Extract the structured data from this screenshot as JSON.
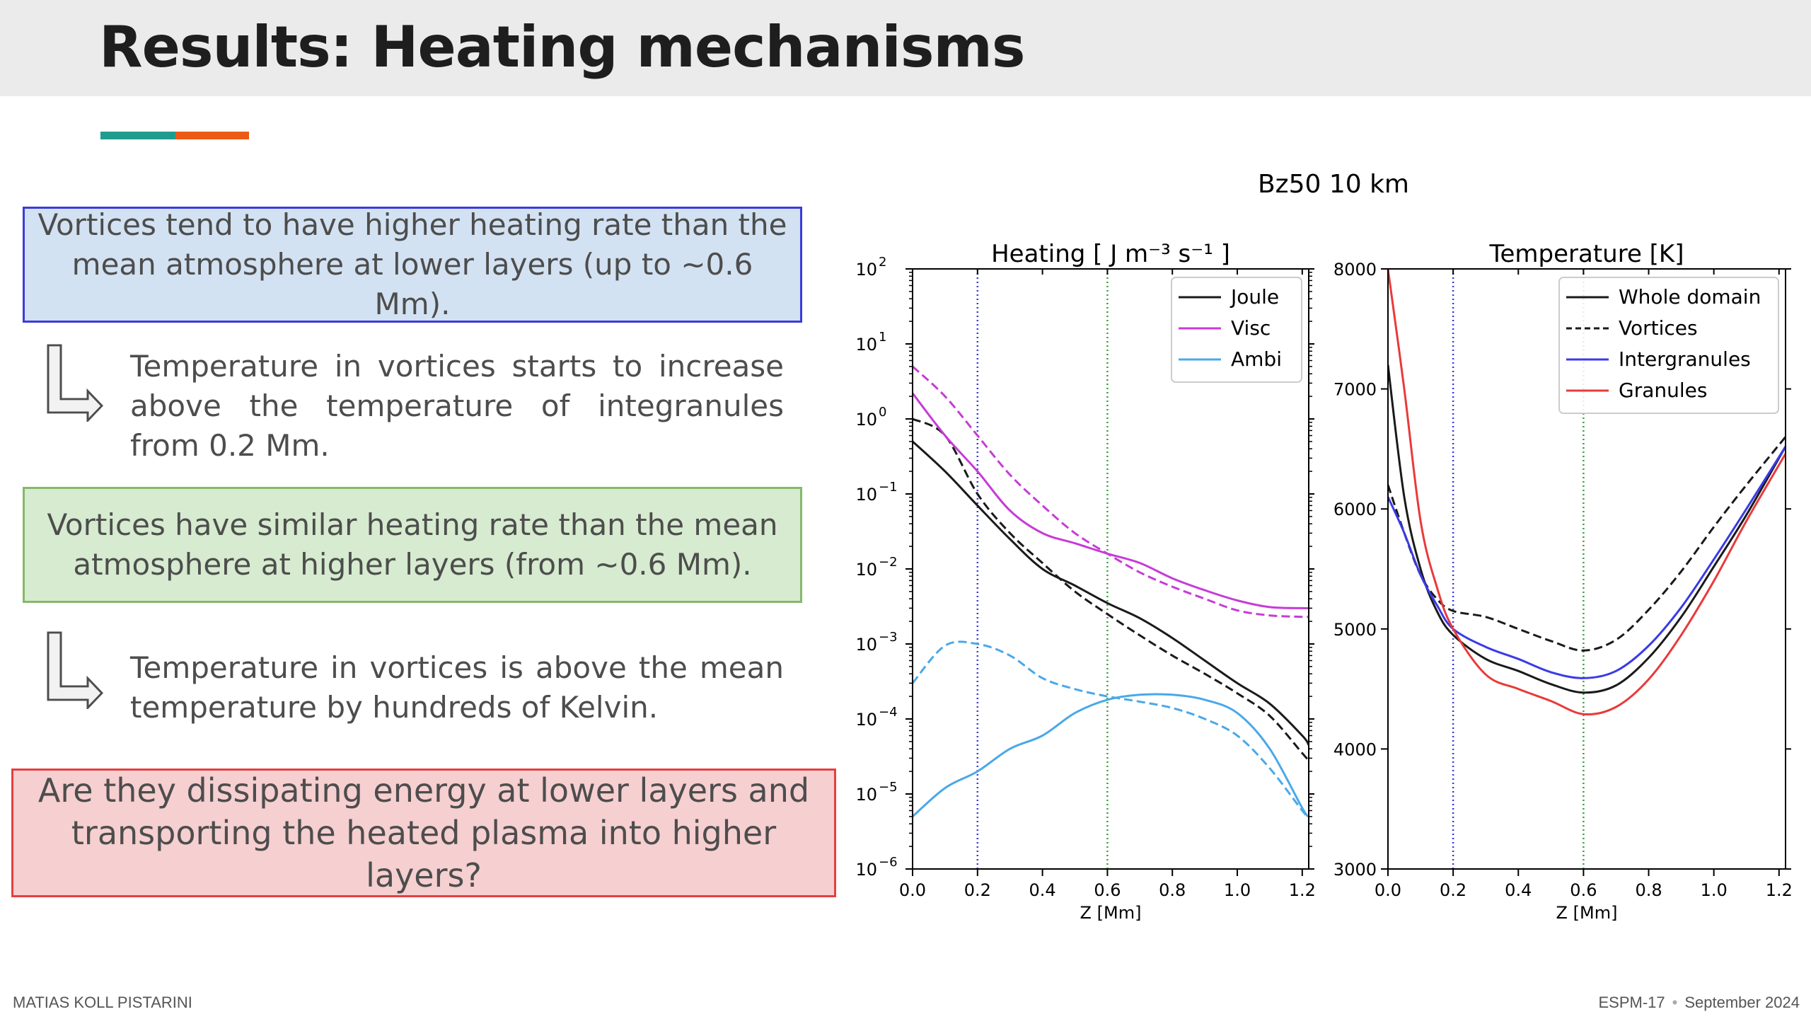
{
  "header": {
    "title": "Results: Heating mechanisms"
  },
  "boxes": {
    "blue": "Vortices tend to have higher heating rate than the mean atmosphere at lower layers (up to ~0.6 Mm).",
    "green": "Vortices have similar heating rate than the mean atmosphere at higher layers (from ~0.6 Mm).",
    "red": "Are they dissipating energy at lower layers and transporting the heated plasma into higher layers?"
  },
  "notes": {
    "note1": "Temperature in vortices starts to increase above the temperature of integranules from 0.2 Mm.",
    "note2": "Temperature in vortices is above the mean temperature by hundreds of Kelvin."
  },
  "footer": {
    "author": "MATIAS KOLL PISTARINI",
    "conference": "ESPM-17",
    "separator": "•",
    "date": "September  2024"
  },
  "colors": {
    "teal": "#1f9c8d",
    "orange": "#ec5a17"
  },
  "chart_data": [
    {
      "type": "line",
      "suptitle": "Bz50 10 km",
      "title": "Heating [ J m⁻³ s⁻¹ ]",
      "xlabel": "Z [Mm]",
      "ylabel": "",
      "xlim": [
        0.0,
        1.22
      ],
      "ylim": [
        1e-06,
        100
      ],
      "yscale": "log",
      "xticks": [
        0.0,
        0.2,
        0.4,
        0.6,
        0.8,
        1.0,
        1.2
      ],
      "xtick_labels": [
        "0.0",
        "0.2",
        "0.4",
        "0.6",
        "0.8",
        "1.0",
        "1.2"
      ],
      "ytick_exponents": [
        -6,
        -5,
        -4,
        -3,
        -2,
        -1,
        0,
        1,
        2
      ],
      "legend_position": "top-right",
      "vlines": [
        {
          "x": 0.2,
          "color": "#3a3ad8",
          "style": "dotted"
        },
        {
          "x": 0.6,
          "color": "#3aa03a",
          "style": "dotted"
        }
      ],
      "x": [
        0.0,
        0.1,
        0.2,
        0.3,
        0.4,
        0.5,
        0.6,
        0.7,
        0.8,
        0.9,
        1.0,
        1.1,
        1.2,
        1.22
      ],
      "series": [
        {
          "name": "Joule",
          "color": "#1a1a1a",
          "dash": "solid",
          "values": [
            0.5,
            0.2,
            0.07,
            0.025,
            0.01,
            0.006,
            0.0035,
            0.0022,
            0.0012,
            0.0006,
            0.0003,
            0.00016,
            6e-05,
            4.5e-05
          ]
        },
        {
          "name": "",
          "color": "#1a1a1a",
          "dash": "dashed",
          "values": [
            1.0,
            0.6,
            0.1,
            0.03,
            0.012,
            0.005,
            0.0025,
            0.0013,
            0.0007,
            0.0004,
            0.00022,
            0.00011,
            3.5e-05,
            2.8e-05
          ]
        },
        {
          "name": "Visc",
          "color": "#c63cd6",
          "dash": "solid",
          "values": [
            2.2,
            0.6,
            0.2,
            0.06,
            0.03,
            0.022,
            0.016,
            0.012,
            0.0075,
            0.0052,
            0.0038,
            0.0031,
            0.003,
            0.003
          ]
        },
        {
          "name": "",
          "color": "#c63cd6",
          "dash": "dashed",
          "values": [
            5.0,
            2.0,
            0.6,
            0.18,
            0.07,
            0.03,
            0.016,
            0.009,
            0.0058,
            0.004,
            0.0028,
            0.0024,
            0.0023,
            0.0023
          ]
        },
        {
          "name": "Ambi",
          "color": "#4aa8e8",
          "dash": "solid",
          "values": [
            5e-06,
            1.2e-05,
            2e-05,
            4e-05,
            6e-05,
            0.00012,
            0.00018,
            0.00021,
            0.00021,
            0.00018,
            0.00012,
            4e-05,
            6.5e-06,
            5e-06
          ]
        },
        {
          "name": "",
          "color": "#4aa8e8",
          "dash": "dashed",
          "values": [
            0.0003,
            0.00095,
            0.001,
            0.0007,
            0.00035,
            0.00025,
            0.0002,
            0.00017,
            0.00014,
            0.0001,
            6e-05,
            2.2e-05,
            6e-06,
            4.8e-06
          ]
        }
      ]
    },
    {
      "type": "line",
      "title": "Temperature [K]",
      "xlabel": "Z [Mm]",
      "ylabel": "",
      "xlim": [
        0.0,
        1.22
      ],
      "ylim": [
        3000,
        8000
      ],
      "xticks": [
        0.0,
        0.2,
        0.4,
        0.6,
        0.8,
        1.0,
        1.2
      ],
      "xtick_labels": [
        "0.0",
        "0.2",
        "0.4",
        "0.6",
        "0.8",
        "1.0",
        "1.2"
      ],
      "yticks": [
        3000,
        4000,
        5000,
        6000,
        7000,
        8000
      ],
      "ytick_labels": [
        "3000",
        "4000",
        "5000",
        "6000",
        "7000",
        "8000"
      ],
      "legend_position": "top-right",
      "vlines": [
        {
          "x": 0.2,
          "color": "#3a3ad8",
          "style": "dotted"
        },
        {
          "x": 0.6,
          "color": "#3aa03a",
          "style": "dotted"
        }
      ],
      "x": [
        0.0,
        0.05,
        0.1,
        0.15,
        0.2,
        0.3,
        0.4,
        0.5,
        0.6,
        0.7,
        0.8,
        0.9,
        1.0,
        1.1,
        1.22
      ],
      "series": [
        {
          "name": "Whole domain",
          "color": "#1a1a1a",
          "dash": "solid",
          "values": [
            7200,
            6100,
            5500,
            5150,
            4950,
            4750,
            4650,
            4540,
            4470,
            4530,
            4760,
            5100,
            5520,
            5950,
            6520
          ]
        },
        {
          "name": "Vortices",
          "color": "#1a1a1a",
          "dash": "dashed",
          "values": [
            6200,
            5800,
            5450,
            5250,
            5150,
            5100,
            5000,
            4900,
            4820,
            4910,
            5160,
            5480,
            5850,
            6200,
            6600
          ]
        },
        {
          "name": "Intergranules",
          "color": "#3a3ae8",
          "dash": "solid",
          "values": [
            6100,
            5800,
            5450,
            5200,
            5000,
            4850,
            4750,
            4640,
            4590,
            4650,
            4860,
            5180,
            5580,
            6000,
            6520
          ]
        },
        {
          "name": "Granules",
          "color": "#e83a3a",
          "dash": "solid",
          "values": [
            8000,
            7000,
            5900,
            5350,
            5000,
            4620,
            4500,
            4400,
            4290,
            4350,
            4580,
            4950,
            5400,
            5900,
            6460
          ]
        }
      ]
    }
  ]
}
